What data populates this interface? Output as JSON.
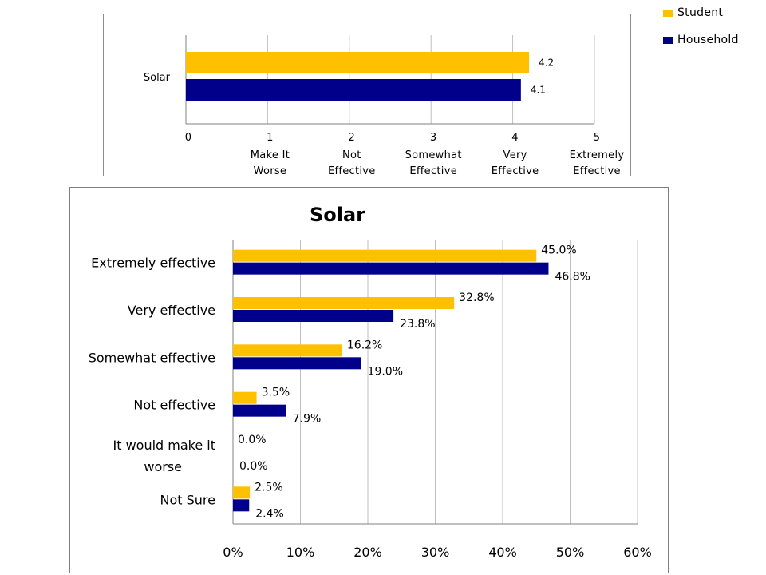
{
  "colors": {
    "student": "#FFC000",
    "household": "#00008B",
    "grid": "#BFBFBF",
    "axis": "#808080"
  },
  "legend": {
    "student_label": "Student",
    "household_label": "Household"
  },
  "chart_data": [
    {
      "type": "bar",
      "orientation": "horizontal",
      "categories": [
        "Solar"
      ],
      "series": [
        {
          "name": "Student",
          "values": [
            4.2
          ]
        },
        {
          "name": "Household",
          "values": [
            4.1
          ]
        }
      ],
      "xlim": [
        0,
        5
      ],
      "x_ticks": [
        0,
        1,
        2,
        3,
        4,
        5
      ],
      "x_tick_labels": [
        [
          "0"
        ],
        [
          "1",
          "Make It",
          "Worse"
        ],
        [
          "2",
          "Not",
          "Effective"
        ],
        [
          "3",
          "Somewhat",
          "Effective"
        ],
        [
          "4",
          "Very",
          "Effective"
        ],
        [
          "5",
          "Extremely",
          "Effective"
        ]
      ],
      "data_labels": [
        "4.2",
        "4.1"
      ],
      "grid": "vertical",
      "legend": "top-right"
    },
    {
      "type": "bar",
      "orientation": "horizontal",
      "title": "Solar",
      "categories": [
        [
          "Extremely effective"
        ],
        [
          "Very effective"
        ],
        [
          "Somewhat effective"
        ],
        [
          "Not effective"
        ],
        [
          "It would make it",
          "worse"
        ],
        [
          "Not Sure"
        ]
      ],
      "series": [
        {
          "name": "Student",
          "values": [
            45.0,
            32.8,
            16.2,
            3.5,
            0.0,
            2.5
          ]
        },
        {
          "name": "Household",
          "values": [
            46.8,
            23.8,
            19.0,
            7.9,
            0.0,
            2.4
          ]
        }
      ],
      "data_labels": [
        [
          "45.0%",
          "32.8%",
          "16.2%",
          "3.5%",
          "0.0%",
          "2.5%"
        ],
        [
          "46.8%",
          "23.8%",
          "19.0%",
          "7.9%",
          "0.0%",
          "2.4%"
        ]
      ],
      "xlim": [
        0,
        60
      ],
      "x_ticks": [
        0,
        10,
        20,
        30,
        40,
        50,
        60
      ],
      "x_tick_labels": [
        "0%",
        "10%",
        "20%",
        "30%",
        "40%",
        "50%",
        "60%"
      ],
      "grid": "vertical"
    }
  ]
}
